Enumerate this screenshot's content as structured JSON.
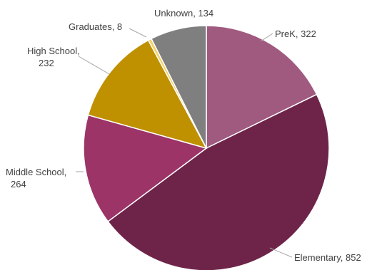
{
  "chart_data": {
    "type": "pie",
    "title": "",
    "slices": [
      {
        "label": "PreK",
        "value": 322,
        "color": "#A05A7F"
      },
      {
        "label": "Elementary",
        "value": 852,
        "color": "#6E2449"
      },
      {
        "label": "Middle School",
        "value": 264,
        "color": "#9C3467"
      },
      {
        "label": "High School",
        "value": 232,
        "color": "#BF9000"
      },
      {
        "label": "Graduates",
        "value": 8,
        "color": "#F2D16B"
      },
      {
        "label": "Unknown",
        "value": 134,
        "color": "#7F7F7F"
      }
    ],
    "start_angle": "12 o'clock",
    "direction": "clockwise",
    "legend": "none",
    "data_labels": "category name and value, outside with leader lines"
  }
}
